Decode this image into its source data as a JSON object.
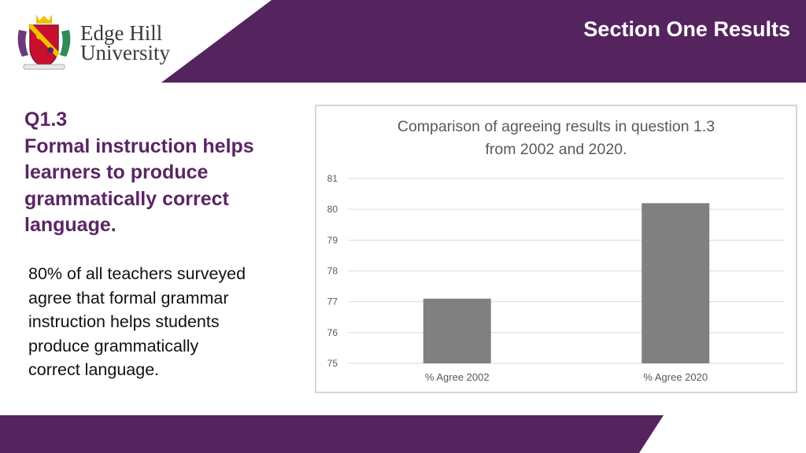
{
  "header": {
    "title": "Section One Results",
    "brand_color": "#55245f"
  },
  "logo": {
    "line1": "Edge Hill",
    "line2": "University"
  },
  "question": {
    "number": "Q1.3",
    "line1": "Formal instruction helps",
    "line2": "learners to produce",
    "line3": "grammatically correct",
    "line4": "language."
  },
  "summary": {
    "line1": "80% of all teachers surveyed",
    "line2": "agree that formal grammar",
    "line3": "instruction helps students",
    "line4": "produce grammatically",
    "line5": "correct language."
  },
  "chart_data": {
    "type": "bar",
    "title_lines": [
      "Comparison of agreeing results in question 1.3",
      "from 2002 and 2020."
    ],
    "categories": [
      "% Agree 2002",
      "% Agree 2020"
    ],
    "values": [
      77.1,
      80.2
    ],
    "ylim": [
      75,
      81
    ],
    "yticks": [
      75,
      76,
      77,
      78,
      79,
      80,
      81
    ],
    "grid": true,
    "bar_color": "#808080",
    "xlabel": "",
    "ylabel": ""
  }
}
